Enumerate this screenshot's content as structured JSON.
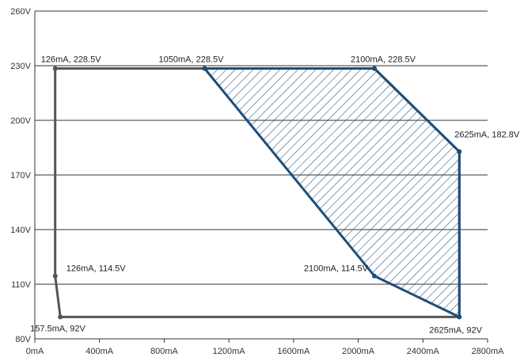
{
  "chart_data": {
    "type": "line",
    "title": "",
    "xlabel": "",
    "ylabel": "",
    "xlim": [
      0,
      2800
    ],
    "ylim": [
      80,
      260
    ],
    "x_ticks": [
      0,
      400,
      800,
      1200,
      1600,
      2000,
      2400,
      2800
    ],
    "x_tick_labels": [
      "0mA",
      "400mA",
      "800mA",
      "1200mA",
      "1600mA",
      "2000mA",
      "2400mA",
      "2800mA"
    ],
    "y_ticks": [
      80,
      110,
      140,
      170,
      200,
      230,
      260
    ],
    "y_tick_labels": [
      "80V",
      "110V",
      "140V",
      "170V",
      "200V",
      "230V",
      "260V"
    ],
    "grid": "horizontal",
    "series": [
      {
        "color": "#555555",
        "closed": true,
        "points": [
          {
            "x": 126,
            "y": 228.5
          },
          {
            "x": 1050,
            "y": 228.5
          },
          {
            "x": 2100,
            "y": 228.5
          },
          {
            "x": 2625,
            "y": 182.8
          },
          {
            "x": 2625,
            "y": 92
          },
          {
            "x": 157.5,
            "y": 92
          },
          {
            "x": 126,
            "y": 114.5
          }
        ]
      },
      {
        "color": "#1f4e79",
        "closed": true,
        "hatched": true,
        "points": [
          {
            "x": 1050,
            "y": 228.5
          },
          {
            "x": 2100,
            "y": 228.5
          },
          {
            "x": 2625,
            "y": 182.8
          },
          {
            "x": 2625,
            "y": 92
          },
          {
            "x": 2100,
            "y": 114.5
          }
        ]
      }
    ],
    "annotations": [
      {
        "text": "126mA, 228.5V",
        "x": 126,
        "y": 228.5,
        "anchor": "above-left"
      },
      {
        "text": "1050mA, 228.5V",
        "x": 1050,
        "y": 228.5,
        "anchor": "above"
      },
      {
        "text": "2100mA, 228.5V",
        "x": 2100,
        "y": 228.5,
        "anchor": "above-right"
      },
      {
        "text": "2625mA, 182.8V",
        "x": 2625,
        "y": 182.8,
        "anchor": "above-right"
      },
      {
        "text": "126mA, 114.5V",
        "x": 126,
        "y": 114.5,
        "anchor": "right"
      },
      {
        "text": "2100mA, 114.5V",
        "x": 2100,
        "y": 114.5,
        "anchor": "left"
      },
      {
        "text": "157.5mA, 92V",
        "x": 157.5,
        "y": 92,
        "anchor": "below"
      },
      {
        "text": "2625mA, 92V",
        "x": 2625,
        "y": 92,
        "anchor": "below"
      }
    ],
    "colors": {
      "grid": "#333333",
      "axis": "#333333"
    }
  }
}
